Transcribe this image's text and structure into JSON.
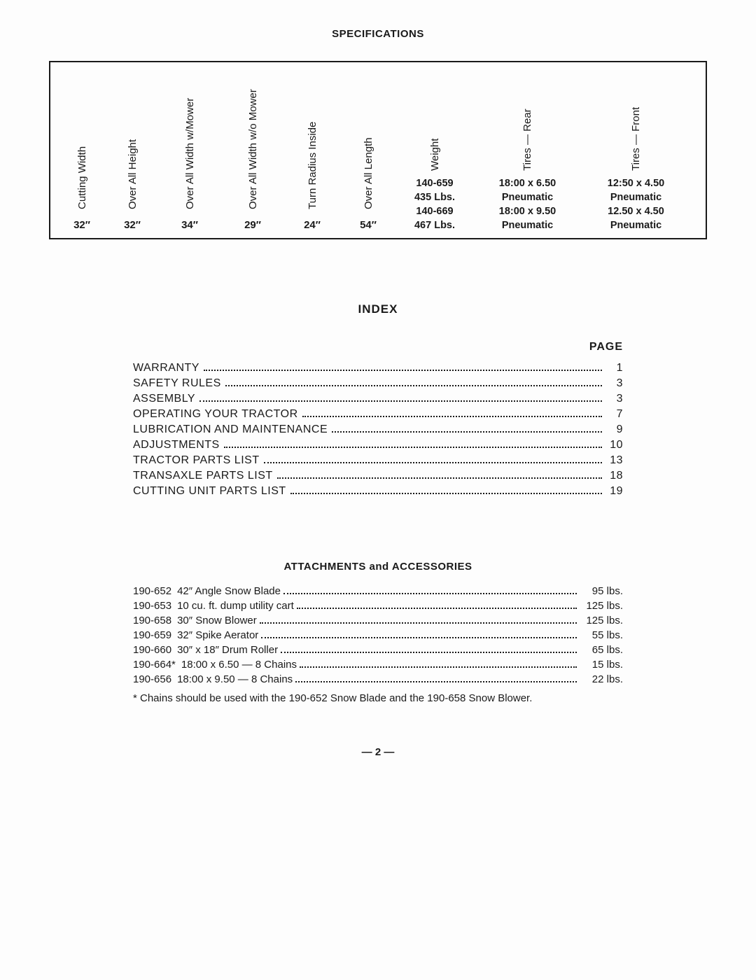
{
  "spec": {
    "title": "SPECIFICATIONS",
    "columns": [
      {
        "header": "Cutting Width",
        "value": "32″"
      },
      {
        "header": "Over All Height",
        "value": "32″"
      },
      {
        "header": "Over All Width w/Mower",
        "value": "34″"
      },
      {
        "header": "Over All Width w/o Mower",
        "value": "29″"
      },
      {
        "header": "Turn Radius Inside",
        "value": "24″"
      },
      {
        "header": "Over All Length",
        "value": "54″"
      }
    ],
    "weight_header": "Weight",
    "weight_rows": [
      "140-659",
      "435 Lbs.",
      "140-669",
      "467 Lbs."
    ],
    "rear_header": "Tires — Rear",
    "rear_rows": [
      "18:00 x 6.50",
      "Pneumatic",
      "18:00 x 9.50",
      "Pneumatic"
    ],
    "front_header": "Tires — Front",
    "front_rows": [
      "12:50 x 4.50",
      "Pneumatic",
      "12.50 x 4.50",
      "Pneumatic"
    ]
  },
  "index": {
    "title": "INDEX",
    "page_label": "PAGE",
    "items": [
      {
        "label": "WARRANTY",
        "page": "1"
      },
      {
        "label": "SAFETY RULES",
        "page": "3"
      },
      {
        "label": "ASSEMBLY",
        "page": "3"
      },
      {
        "label": "OPERATING YOUR TRACTOR",
        "page": "7"
      },
      {
        "label": "LUBRICATION AND MAINTENANCE",
        "page": "9"
      },
      {
        "label": "ADJUSTMENTS",
        "page": "10"
      },
      {
        "label": "TRACTOR PARTS LIST",
        "page": "13"
      },
      {
        "label": "TRANSAXLE PARTS LIST",
        "page": "18"
      },
      {
        "label": "CUTTING UNIT PARTS LIST",
        "page": "19"
      }
    ]
  },
  "attachments": {
    "title": "ATTACHMENTS and ACCESSORIES",
    "items": [
      {
        "code": "190-652",
        "desc": "42″ Angle Snow Blade",
        "val": "95 lbs."
      },
      {
        "code": "190-653",
        "desc": "10 cu. ft. dump utility cart",
        "val": "125 lbs."
      },
      {
        "code": "190-658",
        "desc": "30″ Snow Blower",
        "val": "125 lbs."
      },
      {
        "code": "190-659",
        "desc": "32″ Spike Aerator",
        "val": "55 lbs."
      },
      {
        "code": "190-660",
        "desc": "30″ x 18″ Drum Roller",
        "val": "65 lbs."
      },
      {
        "code": "190-664*",
        "desc": "18:00 x 6.50 — 8 Chains",
        "val": "15 lbs."
      },
      {
        "code": "190-656",
        "desc": "18:00 x 9.50 — 8 Chains",
        "val": "22 lbs."
      }
    ],
    "footnote": "* Chains should be used with the 190-652 Snow Blade and the 190-658 Snow Blower."
  },
  "pagenum": "— 2 —"
}
